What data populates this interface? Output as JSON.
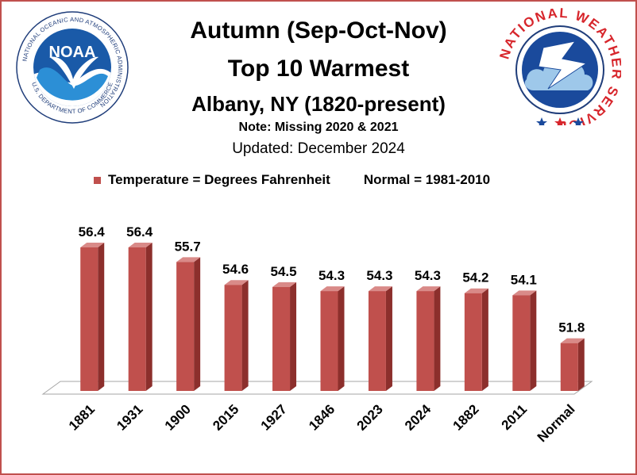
{
  "header": {
    "title_line1": "Autumn (Sep-Oct-Nov)",
    "title_line2": "Top 10 Warmest",
    "title_line3": "Albany, NY (1820-present)",
    "note": "Note: Missing 2020 & 2021",
    "updated": "Updated: December 2024"
  },
  "legend": {
    "series_label": "Temperature = Degrees Fahrenheit",
    "normal_label": "Normal = 1981-2010"
  },
  "logos": {
    "noaa_ring_text": "NATIONAL OCEANIC AND ATMOSPHERIC ADMINISTRATION",
    "noaa_bottom_text": "U.S. DEPARTMENT OF COMMERCE",
    "noaa_center_text": "NOAA",
    "nws_ring_text": "NATIONAL WEATHER SERVICE"
  },
  "colors": {
    "bar": "#c0504d",
    "bar_side": "#8c2f2c",
    "bar_top": "#d98a88",
    "frame": "#c0504d"
  },
  "chart_data": {
    "type": "bar",
    "categories": [
      "1881",
      "1931",
      "1900",
      "2015",
      "1927",
      "1846",
      "2023",
      "2024",
      "1882",
      "2011",
      "Normal"
    ],
    "values": [
      56.4,
      56.4,
      55.7,
      54.6,
      54.5,
      54.3,
      54.3,
      54.3,
      54.2,
      54.1,
      51.8
    ],
    "title": "Autumn (Sep-Oct-Nov) Top 10 Warmest",
    "ylim": [
      49.5,
      56.4
    ],
    "grid": false,
    "data_labels": true
  }
}
